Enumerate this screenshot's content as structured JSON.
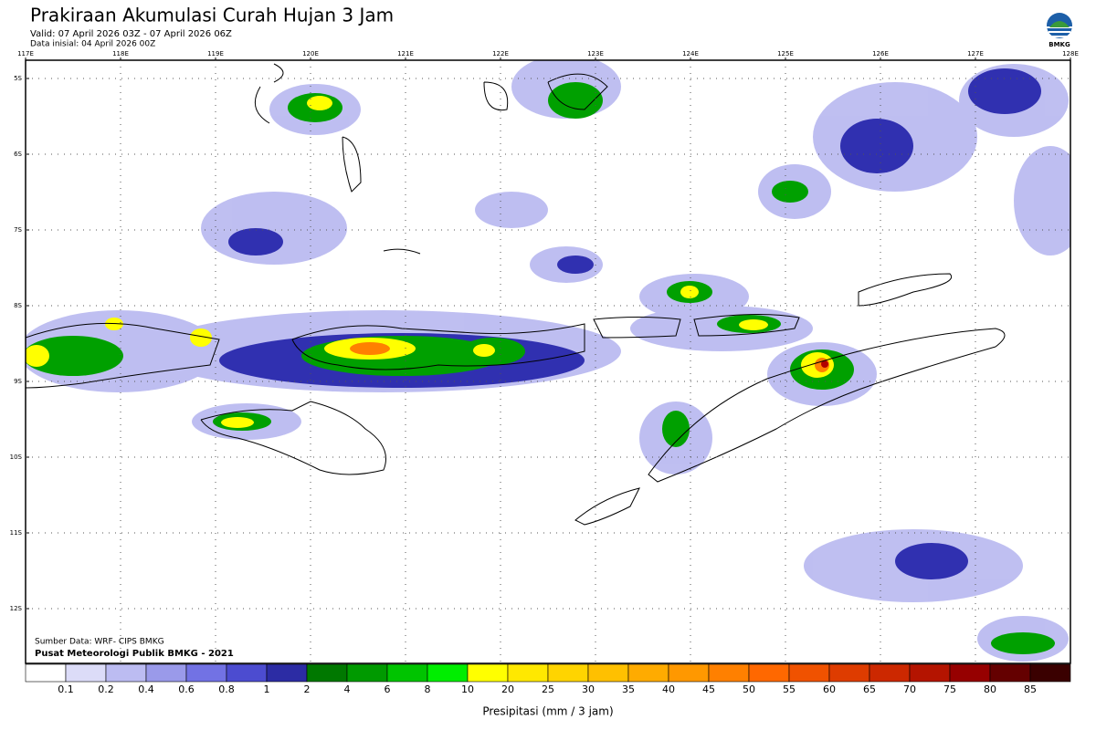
{
  "header": {
    "title": "Prakiraan Akumulasi Curah Hujan 3 Jam",
    "valid": "Valid: 07 April 2026 03Z - 07 April 2026 06Z",
    "initial": "Data inisial: 04 April 2026 00Z",
    "logo": "BMKG"
  },
  "map": {
    "lon_labels": [
      "117E",
      "118E",
      "119E",
      "120E",
      "121E",
      "122E",
      "123E",
      "124E",
      "125E",
      "126E",
      "127E",
      "128E"
    ],
    "lat_labels": [
      "5S",
      "6S",
      "7S",
      "8S",
      "9S",
      "10S",
      "11S",
      "12S"
    ],
    "source": "Sumber Data: WRF- CIPS BMKG",
    "credit": "Pusat Meteorologi Publik BMKG - 2021"
  },
  "legend": {
    "title": "Presipitasi (mm / 3 jam)",
    "labels": [
      "0.1",
      "0.2",
      "0.4",
      "0.6",
      "0.8",
      "1",
      "2",
      "4",
      "6",
      "8",
      "10",
      "20",
      "25",
      "30",
      "35",
      "40",
      "45",
      "50",
      "55",
      "60",
      "65",
      "70",
      "75",
      "80",
      "85"
    ],
    "colors": [
      "#ffffff",
      "#dcdcf8",
      "#bcbcf2",
      "#9a9aea",
      "#7272e4",
      "#4c4cd0",
      "#2c2ca4",
      "#007800",
      "#009a00",
      "#00c400",
      "#00ee00",
      "#ffff00",
      "#ffe800",
      "#ffd400",
      "#ffc000",
      "#ffab00",
      "#ff9800",
      "#ff8000",
      "#ff6800",
      "#f05200",
      "#de3c00",
      "#cc2800",
      "#b41400",
      "#960000",
      "#640000",
      "#3a0000"
    ]
  }
}
